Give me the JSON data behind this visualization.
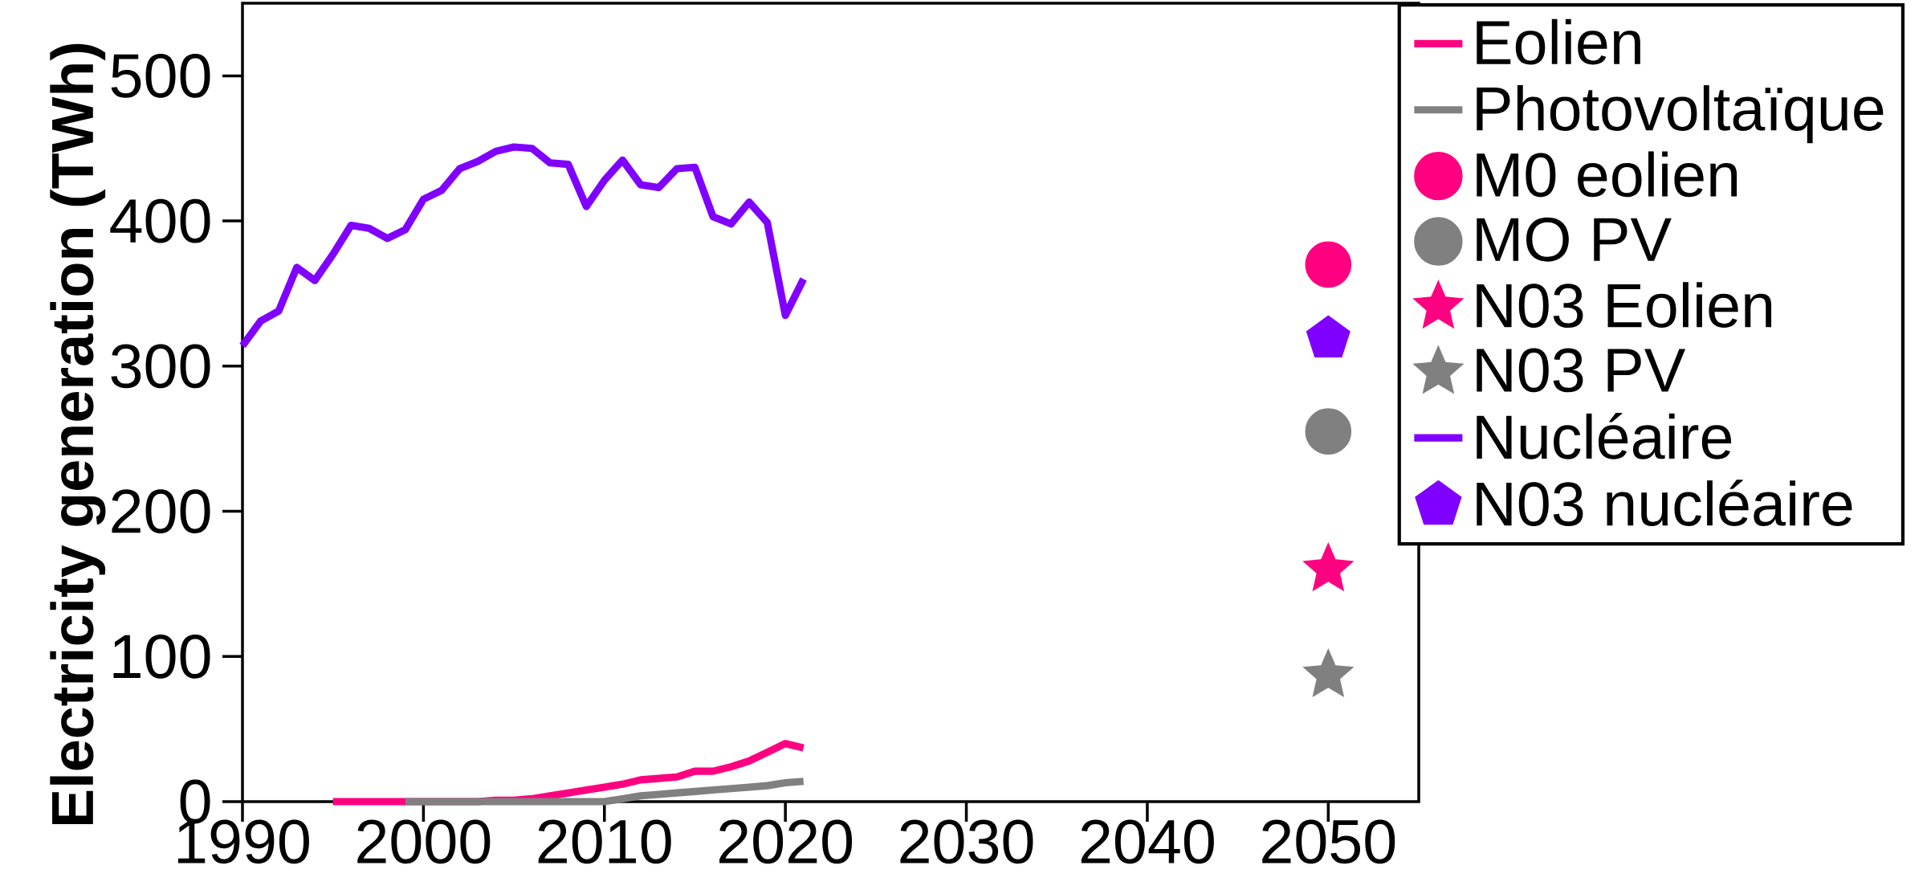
{
  "chart_data": {
    "type": "line",
    "ylabel": "Electricity generation (TWh)",
    "xlim": [
      1990,
      2055
    ],
    "xticks": [
      1990,
      2000,
      2010,
      2020,
      2030,
      2040,
      2050
    ],
    "ylim": [
      0,
      550
    ],
    "yticks": [
      0,
      100,
      200,
      300,
      400,
      500
    ],
    "grid": false,
    "legend": "right",
    "series": [
      {
        "name": "Eolien",
        "marker": "none",
        "color": "#ff0080",
        "x": [
          1995,
          1996,
          1997,
          1998,
          1999,
          2000,
          2001,
          2002,
          2003,
          2004,
          2005,
          2006,
          2007,
          2008,
          2009,
          2010,
          2011,
          2012,
          2013,
          2014,
          2015,
          2016,
          2017,
          2018,
          2019,
          2020,
          2021
        ],
        "values": [
          0,
          0,
          0,
          0,
          0,
          0,
          0,
          0,
          0,
          1,
          1,
          2,
          4,
          6,
          8,
          10,
          12,
          15,
          16,
          17,
          21,
          21,
          24,
          28,
          34,
          40,
          37
        ]
      },
      {
        "name": "Photovoltaïque",
        "marker": "none",
        "color": "#808080",
        "x": [
          1999,
          2000,
          2001,
          2002,
          2003,
          2004,
          2005,
          2006,
          2007,
          2008,
          2009,
          2010,
          2011,
          2012,
          2013,
          2014,
          2015,
          2016,
          2017,
          2018,
          2019,
          2020,
          2021
        ],
        "values": [
          0,
          0,
          0,
          0,
          0,
          0,
          0,
          0,
          0,
          0,
          0,
          0,
          2,
          4,
          5,
          6,
          7,
          8,
          9,
          10,
          11,
          13,
          14
        ]
      },
      {
        "name": "M0 eolien",
        "type": "scatter",
        "marker": "circle",
        "color": "#ff0080",
        "x": [
          2050
        ],
        "values": [
          370
        ]
      },
      {
        "name": "MO PV",
        "type": "scatter",
        "marker": "circle",
        "color": "#808080",
        "x": [
          2050
        ],
        "values": [
          255
        ]
      },
      {
        "name": "N03 Eolien",
        "type": "scatter",
        "marker": "star",
        "color": "#ff0080",
        "x": [
          2050
        ],
        "values": [
          160
        ]
      },
      {
        "name": "N03 PV",
        "type": "scatter",
        "marker": "star",
        "color": "#808080",
        "x": [
          2050
        ],
        "values": [
          87
        ]
      },
      {
        "name": "Nucléaire",
        "marker": "none",
        "color": "#8000ff",
        "x": [
          1990,
          1991,
          1992,
          1993,
          1994,
          1995,
          1996,
          1997,
          1998,
          1999,
          2000,
          2001,
          2002,
          2003,
          2004,
          2005,
          2006,
          2007,
          2008,
          2009,
          2010,
          2011,
          2012,
          2013,
          2014,
          2015,
          2016,
          2017,
          2018,
          2019,
          2020,
          2021
        ],
        "values": [
          314,
          331,
          338,
          368,
          359,
          377,
          397,
          395,
          388,
          394,
          415,
          421,
          436,
          441,
          448,
          451,
          450,
          440,
          439,
          410,
          428,
          442,
          425,
          423,
          436,
          437,
          403,
          398,
          413,
          399,
          335,
          360
        ]
      },
      {
        "name": "N03 nucléaire",
        "type": "scatter",
        "color": "#8000ff",
        "x": [
          2050
        ],
        "values": [
          319
        ]
      }
    ]
  }
}
